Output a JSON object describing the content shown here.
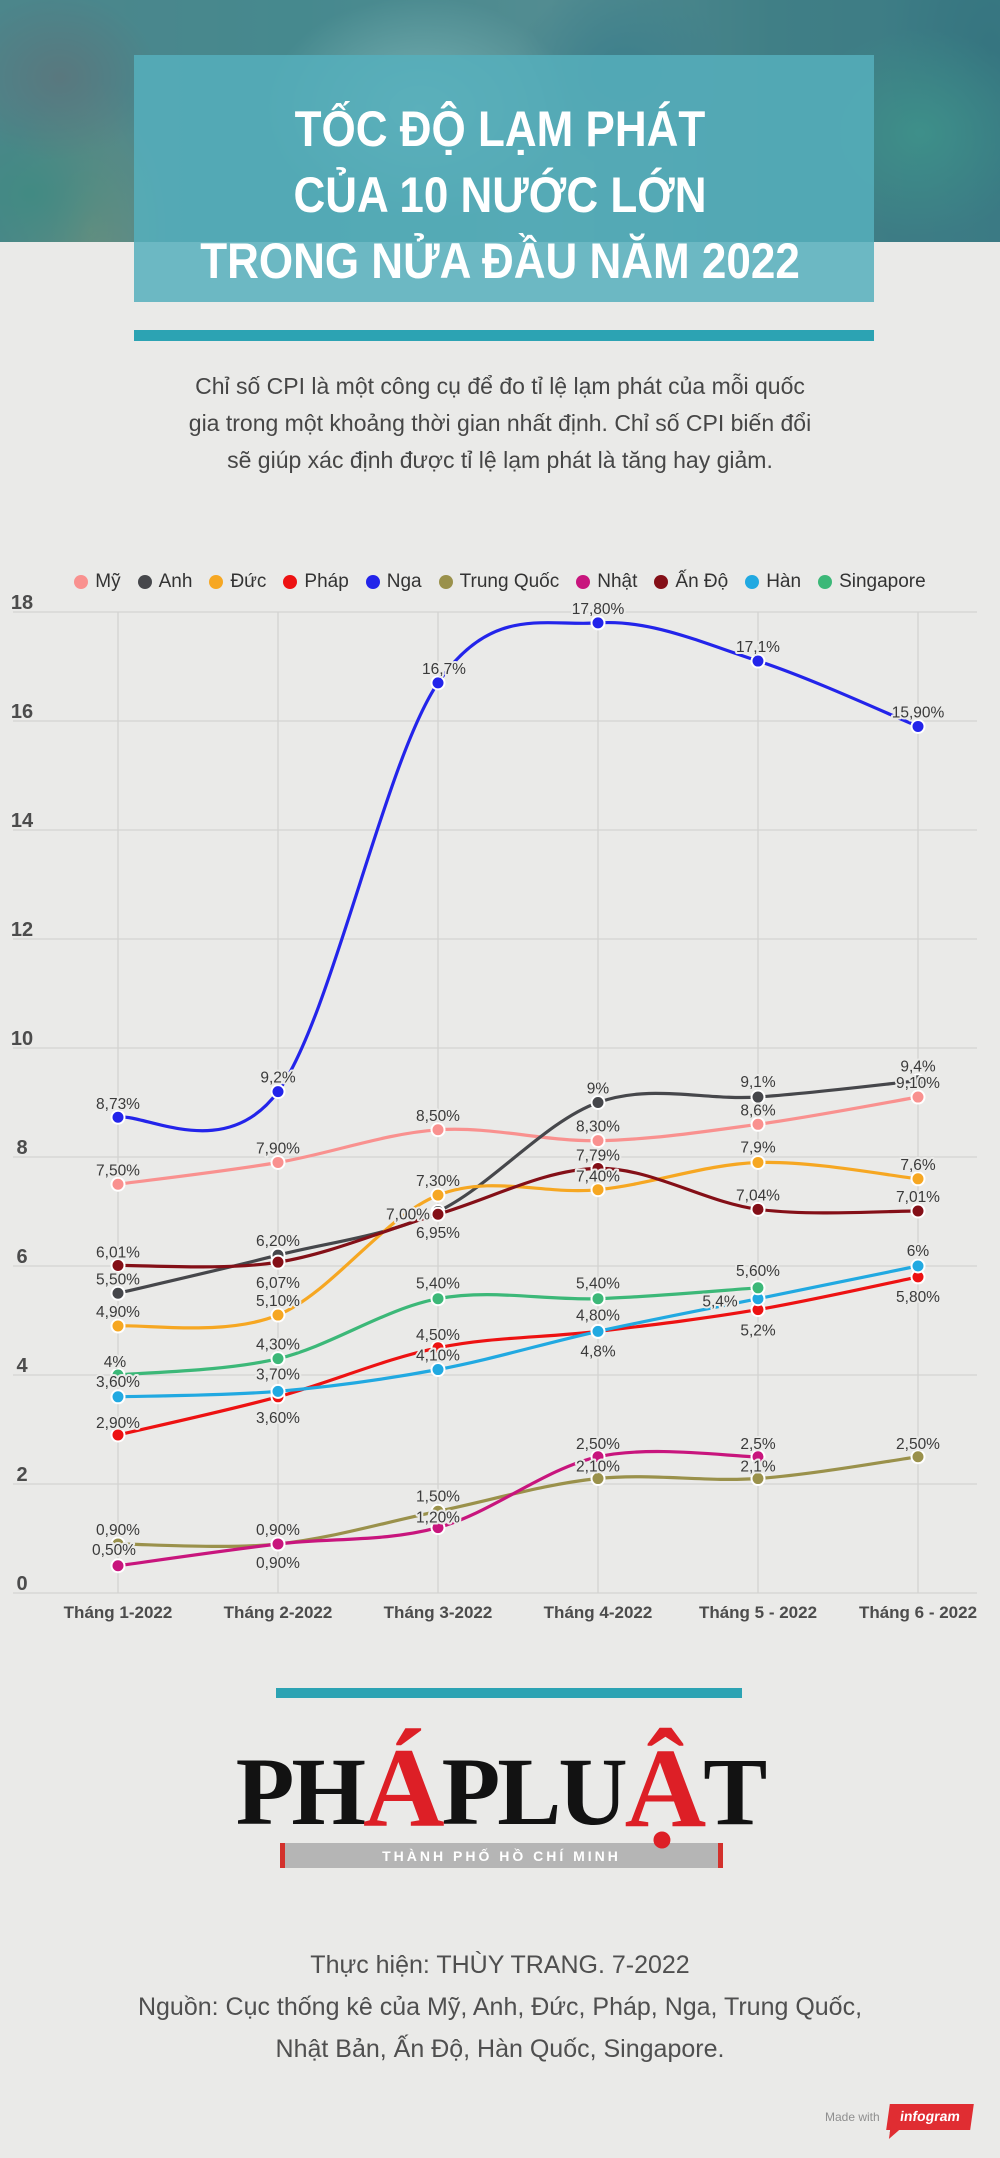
{
  "page": {
    "bg": "#EAEAE8"
  },
  "header": {
    "title_lines": [
      "TỐC ĐỘ LẠM PHÁT",
      "CỦA 10 NƯỚC LỚN",
      "TRONG NỬA ĐẦU NĂM 2022"
    ],
    "panel_color": "#56AFBC",
    "divider_color": "#2CA3B3"
  },
  "intro": {
    "lines": [
      "Chỉ số CPI là một công cụ để đo tỉ lệ lạm phát của mỗi quốc",
      "gia trong một khoảng thời gian nhất định. Chỉ số CPI biến đổi",
      "sẽ giúp xác định được tỉ lệ lạm phát là tăng hay giảm."
    ]
  },
  "chart_data": {
    "type": "line",
    "title": "",
    "xlabel": "",
    "ylabel": "",
    "grid": true,
    "legend_position": "top",
    "ylim": [
      0,
      18
    ],
    "y_ticks": [
      0,
      2,
      4,
      6,
      8,
      10,
      12,
      14,
      16,
      18
    ],
    "x_categories": [
      "Tháng 1-2022",
      "Tháng 2-2022",
      "Tháng 3-2022",
      "Tháng 4-2022",
      "Tháng 5 - 2022",
      "Tháng 6 - 2022"
    ],
    "series": [
      {
        "name": "Mỹ",
        "color": "#F9918F",
        "values": [
          7.5,
          7.9,
          8.5,
          8.3,
          8.6,
          9.1
        ],
        "labels": [
          {
            "t": "7,50%",
            "dx": 0,
            "dy": -14
          },
          {
            "t": "7,90%",
            "dx": 0,
            "dy": -14
          },
          {
            "t": "8,50%",
            "dx": 0,
            "dy": -14
          },
          {
            "t": "8,30%",
            "dx": 0,
            "dy": -14
          },
          {
            "t": "8,6%",
            "dx": 0,
            "dy": -14
          },
          {
            "t": "9,10%",
            "dx": 0,
            "dy": -14
          }
        ]
      },
      {
        "name": "Anh",
        "color": "#46474B",
        "values": [
          5.5,
          6.2,
          7.0,
          9.0,
          9.1,
          9.4
        ],
        "labels": [
          {
            "t": "5,50%",
            "dx": 0,
            "dy": -14
          },
          {
            "t": "6,20%",
            "dx": 0,
            "dy": -14
          },
          {
            "t": "7,00%",
            "dx": -30,
            "dy": 3
          },
          {
            "t": "9%",
            "dx": 0,
            "dy": -14
          },
          {
            "t": "9,1%",
            "dx": 0,
            "dy": -15
          },
          {
            "t": "9,4%",
            "dx": 0,
            "dy": -14
          }
        ]
      },
      {
        "name": "Đức",
        "color": "#F6A722",
        "values": [
          4.9,
          5.1,
          7.3,
          7.4,
          7.9,
          7.6
        ],
        "labels": [
          {
            "t": "4,90%",
            "dx": 0,
            "dy": -14
          },
          {
            "t": "5,10%",
            "dx": 0,
            "dy": -14
          },
          {
            "t": "7,30%",
            "dx": 0,
            "dy": -14
          },
          {
            "t": "7,40%",
            "dx": 0,
            "dy": -13
          },
          {
            "t": "7,9%",
            "dx": 0,
            "dy": -15
          },
          {
            "t": "7,6%",
            "dx": 0,
            "dy": -14
          }
        ]
      },
      {
        "name": "Pháp",
        "color": "#ED1212",
        "values": [
          2.9,
          3.6,
          4.5,
          4.8,
          5.2,
          5.8
        ],
        "labels": [
          {
            "t": "2,90%",
            "dx": 0,
            "dy": -12
          },
          {
            "t": "3,60%",
            "dx": 0,
            "dy": 21
          },
          {
            "t": "4,50%",
            "dx": 0,
            "dy": -13
          },
          {
            "t": "4,8%",
            "dx": 0,
            "dy": 20
          },
          {
            "t": "5,2%",
            "dx": 0,
            "dy": 21
          },
          {
            "t": "5,80%",
            "dx": 0,
            "dy": 20
          }
        ]
      },
      {
        "name": "Nga",
        "color": "#2324EA",
        "values": [
          8.73,
          9.2,
          16.7,
          17.8,
          17.1,
          15.9
        ],
        "labels": [
          {
            "t": "8,73%",
            "dx": 0,
            "dy": -13
          },
          {
            "t": "9,2%",
            "dx": 0,
            "dy": -14
          },
          {
            "t": "16,7%",
            "dx": 6,
            "dy": -14
          },
          {
            "t": "17,80%",
            "dx": 0,
            "dy": -14
          },
          {
            "t": "17,1%",
            "dx": 0,
            "dy": -14
          },
          {
            "t": "15,90%",
            "dx": 0,
            "dy": -14
          }
        ]
      },
      {
        "name": "Trung Quốc",
        "color": "#9A914B",
        "values": [
          0.9,
          0.9,
          1.5,
          2.1,
          2.1,
          2.5
        ],
        "labels": [
          {
            "t": "0,90%",
            "dx": 0,
            "dy": -14
          },
          {
            "t": "0,90%",
            "dx": 0,
            "dy": -14
          },
          {
            "t": "1,50%",
            "dx": 0,
            "dy": -15
          },
          {
            "t": "2,10%",
            "dx": 0,
            "dy": -12
          },
          {
            "t": "2,1%",
            "dx": 0,
            "dy": -12
          },
          {
            "t": "2,50%",
            "dx": 0,
            "dy": -13
          }
        ]
      },
      {
        "name": "Nhật",
        "color": "#C8157D",
        "values": [
          0.5,
          0.9,
          1.2,
          2.5,
          2.5,
          null
        ],
        "labels": [
          {
            "t": "0,50%",
            "dx": -4,
            "dy": -16
          },
          {
            "t": "0,90%",
            "dx": 0,
            "dy": 19
          },
          {
            "t": "1,20%",
            "dx": 0,
            "dy": -10
          },
          {
            "t": "2,50%",
            "dx": 0,
            "dy": -13
          },
          {
            "t": "2,5%",
            "dx": 0,
            "dy": -13
          },
          null
        ]
      },
      {
        "name": "Ấn Độ",
        "color": "#840F17",
        "values": [
          6.01,
          6.07,
          6.95,
          7.79,
          7.04,
          7.01
        ],
        "labels": [
          {
            "t": "6,01%",
            "dx": 0,
            "dy": -13
          },
          {
            "t": "6,07%",
            "dx": 0,
            "dy": 21
          },
          {
            "t": "6,95%",
            "dx": 0,
            "dy": 19
          },
          {
            "t": "7,79%",
            "dx": 0,
            "dy": -13
          },
          {
            "t": "7,04%",
            "dx": 0,
            "dy": -14
          },
          {
            "t": "7,01%",
            "dx": 0,
            "dy": -14
          }
        ]
      },
      {
        "name": "Hàn",
        "color": "#21A9E1",
        "values": [
          3.6,
          3.7,
          4.1,
          4.8,
          5.4,
          6.0
        ],
        "labels": [
          {
            "t": "3,60%",
            "dx": 0,
            "dy": -15
          },
          {
            "t": "3,70%",
            "dx": 0,
            "dy": -17
          },
          {
            "t": "4,10%",
            "dx": 0,
            "dy": -14
          },
          {
            "t": "4,80%",
            "dx": 0,
            "dy": -16
          },
          {
            "t": "5,4%",
            "dx": -38,
            "dy": 3
          },
          {
            "t": "6%",
            "dx": 0,
            "dy": -15
          }
        ]
      },
      {
        "name": "Singapore",
        "color": "#3CB878",
        "values": [
          4.0,
          4.3,
          5.4,
          5.4,
          5.6,
          null
        ],
        "labels": [
          {
            "t": "4%",
            "dx": -3,
            "dy": -13
          },
          {
            "t": "4,30%",
            "dx": 0,
            "dy": -14
          },
          {
            "t": "5,40%",
            "dx": 0,
            "dy": -15
          },
          {
            "t": "5,40%",
            "dx": 0,
            "dy": -15
          },
          {
            "t": "5,60%",
            "dx": 0,
            "dy": -17
          },
          null
        ]
      }
    ]
  },
  "logo": {
    "parts": [
      {
        "t": "PH",
        "red": false
      },
      {
        "t": "Á",
        "red": true
      },
      {
        "t": "PLU",
        "red": false
      },
      {
        "t": "Ậ",
        "red": true
      },
      {
        "t": "T",
        "red": false
      }
    ],
    "subtitle": "THÀNH PHỐ HỒ CHÍ MINH"
  },
  "credits": {
    "line1": "Thực hiện: THÙY TRANG. 7-2022",
    "line2": "Nguồn: Cục thống kê của Mỹ, Anh, Đức, Pháp, Nga, Trung Quốc,",
    "line3": "Nhật Bản, Ấn Độ, Hàn Quốc, Singapore."
  },
  "watermark": {
    "prefix": "Made with",
    "brand": "infogram"
  }
}
